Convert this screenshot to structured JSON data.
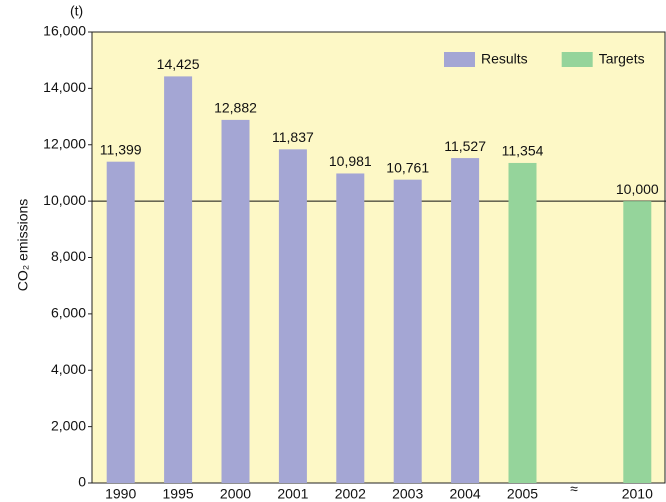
{
  "chart_data": {
    "type": "bar",
    "y_label": "CO₂ emissions",
    "unit": "(t)",
    "categories": [
      "1990",
      "1995",
      "2000",
      "2001",
      "2002",
      "2003",
      "2004",
      "2005",
      null,
      "2010"
    ],
    "series": [
      {
        "name": "Results",
        "color": "#a4a6d4",
        "values": [
          11399,
          14425,
          12882,
          11837,
          10981,
          10761,
          11527,
          null,
          null,
          null
        ],
        "value_labels": [
          "11,399",
          "14,425",
          "12,882",
          "11,837",
          "10,981",
          "10,761",
          "11,527",
          null,
          null,
          null
        ]
      },
      {
        "name": "Targets",
        "color": "#95d49b",
        "values": [
          null,
          null,
          null,
          null,
          null,
          null,
          null,
          11354,
          null,
          10000
        ],
        "value_labels": [
          null,
          null,
          null,
          null,
          null,
          null,
          null,
          "11,354",
          null,
          "10,000"
        ]
      }
    ],
    "ylim": [
      0,
      16000
    ],
    "yticks": [
      0,
      {
        "value": 2000,
        "label": "2,000"
      },
      {
        "value": 4000,
        "label": "4,000"
      },
      {
        "value": 6000,
        "label": "6,000"
      },
      {
        "value": 8000,
        "label": "8,000"
      },
      {
        "value": 10000,
        "label": "10,000"
      },
      {
        "value": 12000,
        "label": "12,000"
      },
      {
        "value": 14000,
        "label": "14,000"
      },
      {
        "value": 16000,
        "label": "16,000"
      }
    ],
    "reference_line": 10000,
    "legend": "upper right"
  }
}
